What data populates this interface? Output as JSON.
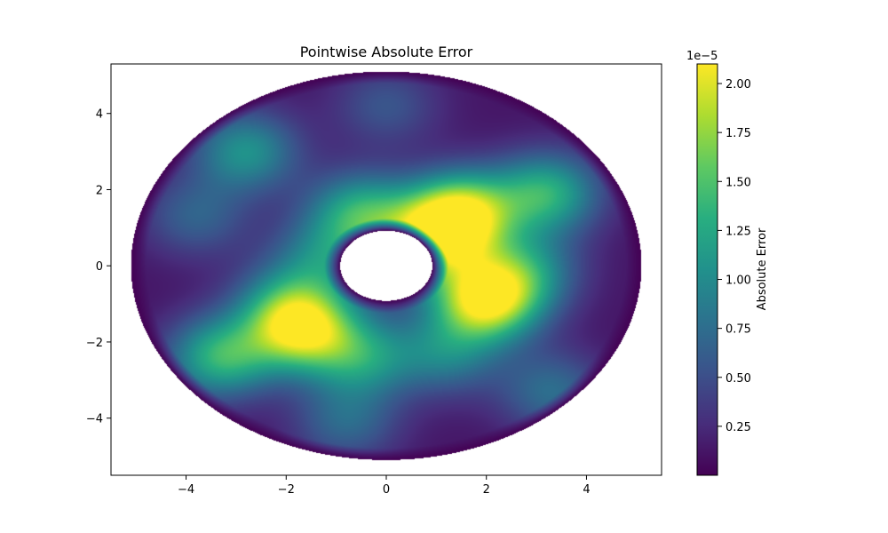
{
  "chart_data": {
    "type": "heatmap",
    "title": "Pointwise Absolute Error",
    "xlabel": "",
    "ylabel": "",
    "xlim": [
      -5.5,
      5.5
    ],
    "ylim": [
      -5.5,
      5.3
    ],
    "x_ticks": [
      -4,
      -2,
      0,
      2,
      4
    ],
    "y_ticks": [
      -4,
      -2,
      0,
      2,
      4
    ],
    "x_tick_labels": [
      "−4",
      "−2",
      "0",
      "2",
      "4"
    ],
    "y_tick_labels": [
      "−4",
      "−2",
      "0",
      "2",
      "4"
    ],
    "domain": {
      "shape": "annulus",
      "center": [
        0,
        0
      ],
      "outer_radius_x": 5.1,
      "outer_radius_y": 5.1,
      "inner_radius_x": 0.92,
      "inner_radius_y": 0.92
    },
    "colormap": "viridis",
    "colorbar": {
      "label": "Absolute Error",
      "exponent_label": "1e−5",
      "ticks": [
        0.25,
        0.5,
        0.75,
        1.0,
        1.25,
        1.5,
        1.75,
        2.0
      ],
      "tick_labels": [
        "0.25",
        "0.50",
        "0.75",
        "1.00",
        "1.25",
        "1.50",
        "1.75",
        "2.00"
      ],
      "vmin": 0.0,
      "vmax": 2.1
    },
    "hotspots": [
      {
        "x": 2.0,
        "y": -0.9,
        "value": 2.1
      },
      {
        "x": -1.7,
        "y": -1.65,
        "value": 1.9
      },
      {
        "x": 1.5,
        "y": 1.4,
        "value": 1.85
      },
      {
        "x": 0.95,
        "y": 0.65,
        "value": 1.55
      },
      {
        "x": -3.3,
        "y": -2.4,
        "value": 1.35
      },
      {
        "x": 3.2,
        "y": 1.9,
        "value": 1.3
      },
      {
        "x": -0.5,
        "y": 1.4,
        "value": 1.25
      },
      {
        "x": -2.8,
        "y": 3.0,
        "value": 1.05
      },
      {
        "x": -0.5,
        "y": -2.4,
        "value": 1.05
      },
      {
        "x": 1.2,
        "y": -2.3,
        "value": 0.85
      },
      {
        "x": 2.8,
        "y": -0.1,
        "value": 0.9
      },
      {
        "x": 3.3,
        "y": -3.3,
        "value": 0.75
      },
      {
        "x": 0.0,
        "y": 4.2,
        "value": 0.55
      },
      {
        "x": -3.8,
        "y": 1.3,
        "value": 0.65
      },
      {
        "x": -0.8,
        "y": -4.1,
        "value": 0.7
      },
      {
        "x": -1.2,
        "y": 0.2,
        "value": 0.85
      },
      {
        "x": -2.0,
        "y": -0.9,
        "value": 0.7
      }
    ]
  }
}
